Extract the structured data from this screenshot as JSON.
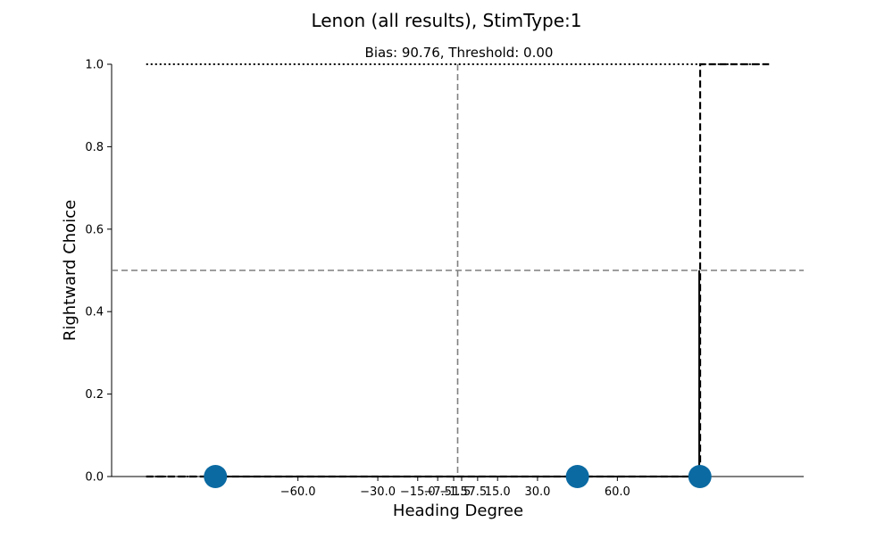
{
  "chart_data": {
    "type": "scatter",
    "title": "Lenon (all results), StimType:1",
    "subtitle": "Bias: 90.76, Threshold: 0.00",
    "xlabel": "Heading Degree",
    "ylabel": "Rightward Choice",
    "xlim": [
      -130,
      130
    ],
    "ylim": [
      0,
      1
    ],
    "x_ticks": [
      -60,
      -30,
      -15,
      -7.5,
      -1.5,
      1.5,
      7.5,
      15,
      30,
      60
    ],
    "x_tick_labels": [
      "−60.0",
      "−30.0",
      "−15.0",
      "−7.5",
      "−1.5",
      "1.5",
      "7.5",
      "15.0",
      "30.0",
      "60.0"
    ],
    "y_ticks": [
      0,
      0.2,
      0.4,
      0.6,
      0.8,
      1.0
    ],
    "y_tick_labels": [
      "0.0",
      "0.2",
      "0.4",
      "0.6",
      "0.8",
      "1.0"
    ],
    "points": [
      {
        "x": -91,
        "y": 0
      },
      {
        "x": 45,
        "y": 0
      },
      {
        "x": 91,
        "y": 0
      }
    ],
    "fit_curve": {
      "x_start": -117,
      "x_end": 117,
      "step_at": 90.76
    },
    "lower_bound_x": [
      -117,
      90
    ],
    "upper_bound_x": [
      -117,
      117
    ],
    "reference_lines": {
      "vertical_x": 0,
      "horizontal_y": 0.5
    },
    "colors": {
      "points": "#0b6aa2",
      "fit": "#000000",
      "reference": "#7f7f7f"
    }
  }
}
